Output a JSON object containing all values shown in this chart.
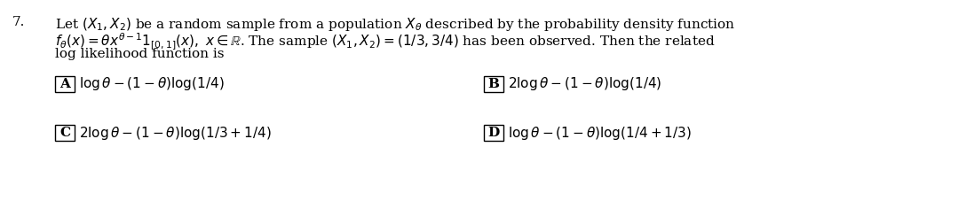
{
  "background_color": "#ffffff",
  "text_color": "#000000",
  "box_color": "#000000",
  "q_num": "7.",
  "line1": "Let $(X_1, X_2)$ be a random sample from a population $X_\\theta$ described by the probability density function",
  "line2": "$f_\\theta(x) = \\theta x^{\\theta-1}1_{[0,1]}(x),\\ x \\in \\mathbb{R}$. The sample $(X_1, X_2) = (1/3, 3/4)$ has been observed. Then the related",
  "line3": "log likelihood function is",
  "optA_label": "A",
  "optA_text": "$\\log\\theta - (1-\\theta)\\log(1/4)$",
  "optB_label": "B",
  "optB_text": "$2\\log\\theta - (1-\\theta)\\log(1/4)$",
  "optC_label": "C",
  "optC_text": "$2\\log\\theta - (1-\\theta)\\log(1/3+1/4)$",
  "optD_label": "D",
  "optD_text": "$\\log\\theta - (1-\\theta)\\log(1/4+1/3)$",
  "fontsize_para": 11.0,
  "fontsize_opts": 11.0,
  "fig_width": 10.79,
  "fig_height": 2.27,
  "dpi": 100
}
